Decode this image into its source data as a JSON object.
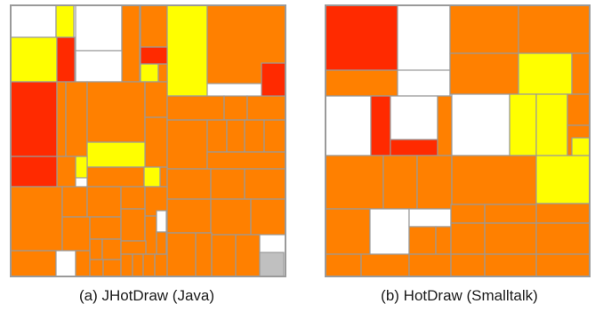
{
  "palette": {
    "orange": "#ff8000",
    "red": "#ff2a00",
    "yellow": "#ffff00",
    "white": "#ffffff",
    "gray": "#c0c0c0",
    "border": "#9a9a9a"
  },
  "panels": [
    {
      "id": "a",
      "caption": "(a) JHotDraw (Java)"
    },
    {
      "id": "b",
      "caption": "(b) HotDraw (Smalltalk)"
    }
  ]
}
